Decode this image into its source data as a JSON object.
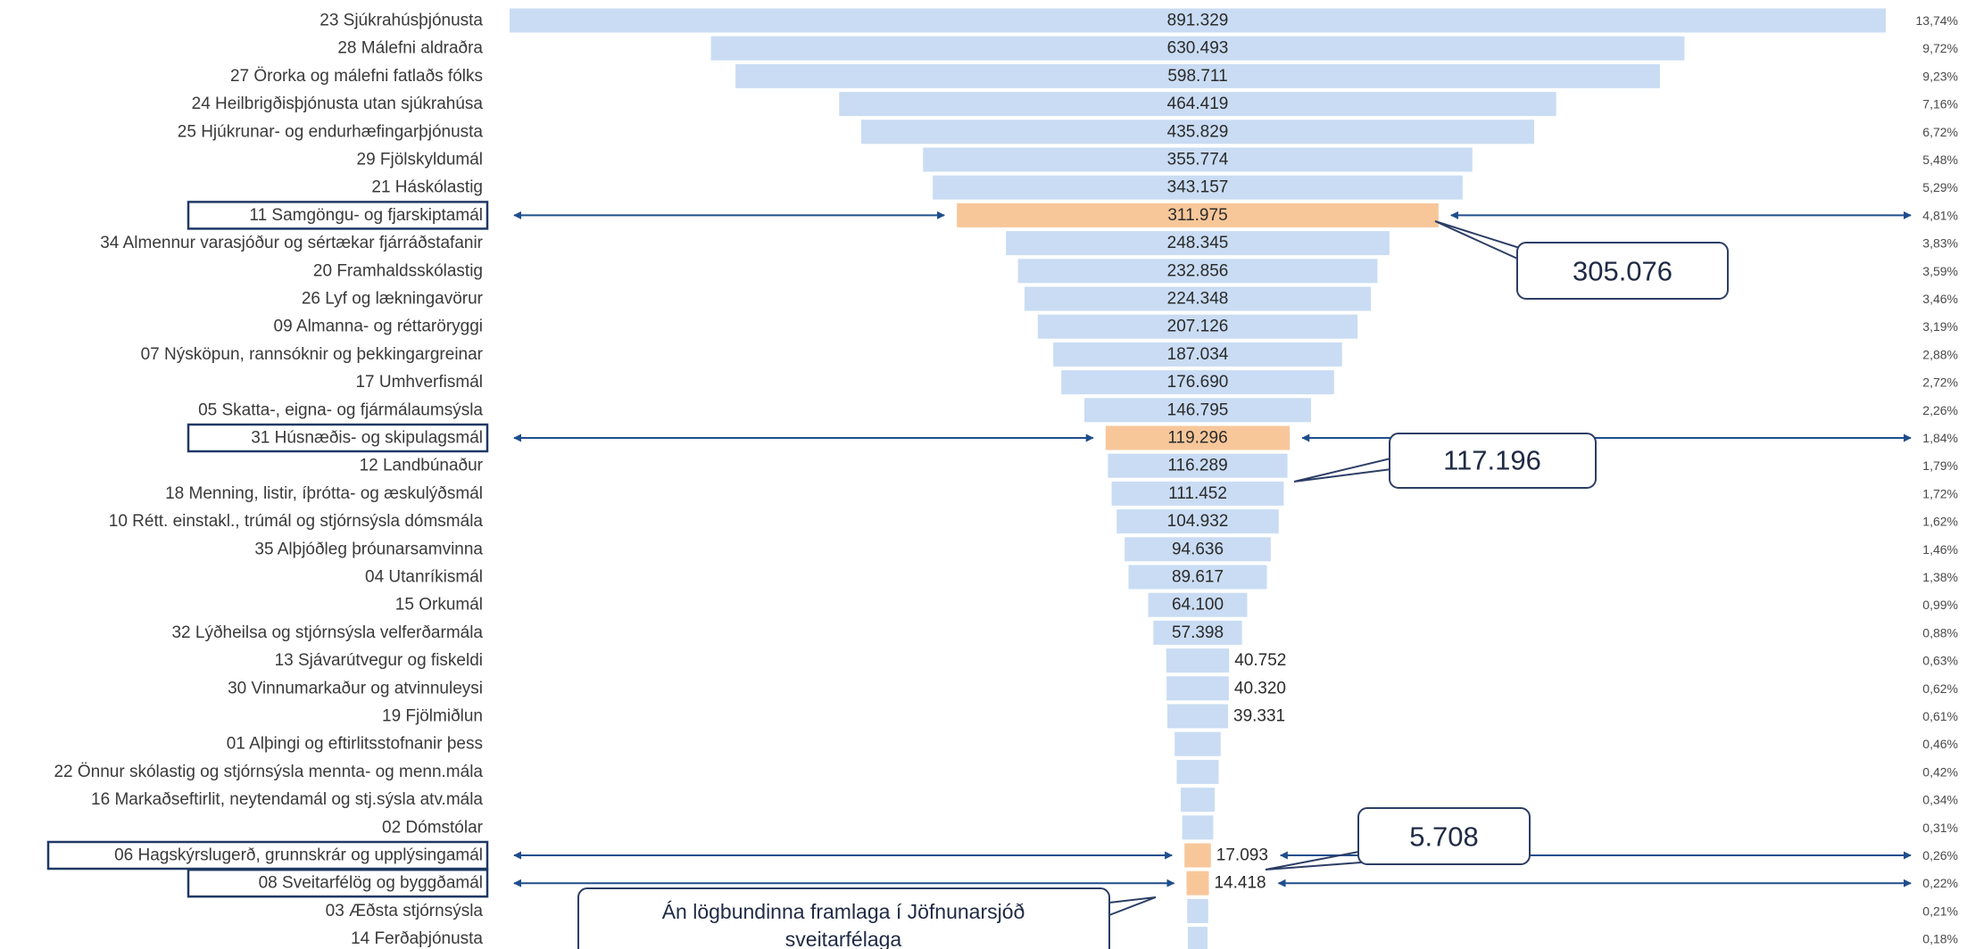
{
  "colors": {
    "bar": "#c9dcf3",
    "highlight": "#f7c79a",
    "arrow": "#1f4e8c",
    "box_border": "#1f3864",
    "callout_border": "#2c3e66"
  },
  "chart_data": {
    "type": "bar",
    "orientation": "horizontal-centered-funnel",
    "rows": [
      {
        "label": "23 Sjúkrahúsþjónusta",
        "value": 891329,
        "value_label": "891.329",
        "pct": "13,74%"
      },
      {
        "label": "28 Málefni aldraðra",
        "value": 630493,
        "value_label": "630.493",
        "pct": "9,72%"
      },
      {
        "label": "27 Örorka og málefni fatlaðs fólks",
        "value": 598711,
        "value_label": "598.711",
        "pct": "9,23%"
      },
      {
        "label": "24 Heilbrigðisþjónusta utan sjúkrahúsa",
        "value": 464419,
        "value_label": "464.419",
        "pct": "7,16%"
      },
      {
        "label": "25 Hjúkrunar- og endurhæfingarþjónusta",
        "value": 435829,
        "value_label": "435.829",
        "pct": "6,72%"
      },
      {
        "label": "29 Fjölskyldumál",
        "value": 355774,
        "value_label": "355.774",
        "pct": "5,48%"
      },
      {
        "label": "21 Háskólastig",
        "value": 343157,
        "value_label": "343.157",
        "pct": "5,29%"
      },
      {
        "label": "11 Samgöngu- og fjarskiptamál",
        "value": 311975,
        "value_label": "311.975",
        "pct": "4,81%",
        "highlight": true
      },
      {
        "label": "34 Almennur varasjóður og sértækar fjárráðstafanir",
        "value": 248345,
        "value_label": "248.345",
        "pct": "3,83%"
      },
      {
        "label": "20 Framhaldsskólastig",
        "value": 232856,
        "value_label": "232.856",
        "pct": "3,59%"
      },
      {
        "label": "26 Lyf og lækningavörur",
        "value": 224348,
        "value_label": "224.348",
        "pct": "3,46%"
      },
      {
        "label": "09 Almanna- og réttaröryggi",
        "value": 207126,
        "value_label": "207.126",
        "pct": "3,19%"
      },
      {
        "label": "07 Nýsköpun, rannsóknir og þekkingargreinar",
        "value": 187034,
        "value_label": "187.034",
        "pct": "2,88%"
      },
      {
        "label": "17 Umhverfismál",
        "value": 176690,
        "value_label": "176.690",
        "pct": "2,72%"
      },
      {
        "label": "05 Skatta-, eigna- og fjármálaumsýsla",
        "value": 146795,
        "value_label": "146.795",
        "pct": "2,26%"
      },
      {
        "label": "31 Húsnæðis- og skipulagsmál",
        "value": 119296,
        "value_label": "119.296",
        "pct": "1,84%",
        "highlight": true
      },
      {
        "label": "12 Landbúnaður",
        "value": 116289,
        "value_label": "116.289",
        "pct": "1,79%"
      },
      {
        "label": "18 Menning, listir, íþrótta- og æskulýðsmál",
        "value": 111452,
        "value_label": "111.452",
        "pct": "1,72%"
      },
      {
        "label": "10 Rétt. einstakl., trúmál og stjórnsýsla dómsmála",
        "value": 104932,
        "value_label": "104.932",
        "pct": "1,62%"
      },
      {
        "label": "35 Alþjóðleg þróunarsamvinna",
        "value": 94636,
        "value_label": "94.636",
        "pct": "1,46%"
      },
      {
        "label": "04 Utanríkismál",
        "value": 89617,
        "value_label": "89.617",
        "pct": "1,38%"
      },
      {
        "label": "15 Orkumál",
        "value": 64100,
        "value_label": "64.100",
        "pct": "0,99%"
      },
      {
        "label": "32 Lýðheilsa og stjórnsýsla velferðarmála",
        "value": 57398,
        "value_label": "57.398",
        "pct": "0,88%"
      },
      {
        "label": "13 Sjávarútvegur og fiskeldi",
        "value": 40752,
        "value_label": "40.752",
        "pct": "0,63%"
      },
      {
        "label": "30 Vinnumarkaður og atvinnuleysi",
        "value": 40320,
        "value_label": "40.320",
        "pct": "0,62%"
      },
      {
        "label": "19 Fjölmiðlun",
        "value": 39331,
        "value_label": "39.331",
        "pct": "0,61%"
      },
      {
        "label": "01 Alþingi og eftirlitsstofnanir þess",
        "value": 29800,
        "value_label": "",
        "pct": "0,46%"
      },
      {
        "label": "22 Önnur skólastig og stjórnsýsla mennta- og menn.mála",
        "value": 27200,
        "value_label": "",
        "pct": "0,42%"
      },
      {
        "label": "16 Markaðseftirlit, neytendamál og stj.sýsla atv.mála",
        "value": 22000,
        "value_label": "",
        "pct": "0,34%"
      },
      {
        "label": "02 Dómstólar",
        "value": 20100,
        "value_label": "",
        "pct": "0,31%"
      },
      {
        "label": "06 Hagskýrslugerð, grunnskrár og upplýsingamál",
        "value": 17093,
        "value_label": "17.093",
        "pct": "0,26%",
        "highlight": true
      },
      {
        "label": "08 Sveitarfélög og byggðamál",
        "value": 14418,
        "value_label": "14.418",
        "pct": "0,22%",
        "highlight": true
      },
      {
        "label": "03 Æðsta stjórnsýsla",
        "value": 13600,
        "value_label": "",
        "pct": "0,21%"
      },
      {
        "label": "14 Ferðaþjónusta",
        "value": 11700,
        "value_label": "",
        "pct": "0,18%"
      }
    ],
    "annotations": [
      {
        "text": "305.076",
        "row": 7
      },
      {
        "text": "117.196",
        "row": 15
      },
      {
        "text": "5.708",
        "row": 30
      },
      {
        "text": "Án lögbundinna framlaga í Jöfnunarsjóð sveitarfélaga",
        "row": 31
      }
    ]
  }
}
